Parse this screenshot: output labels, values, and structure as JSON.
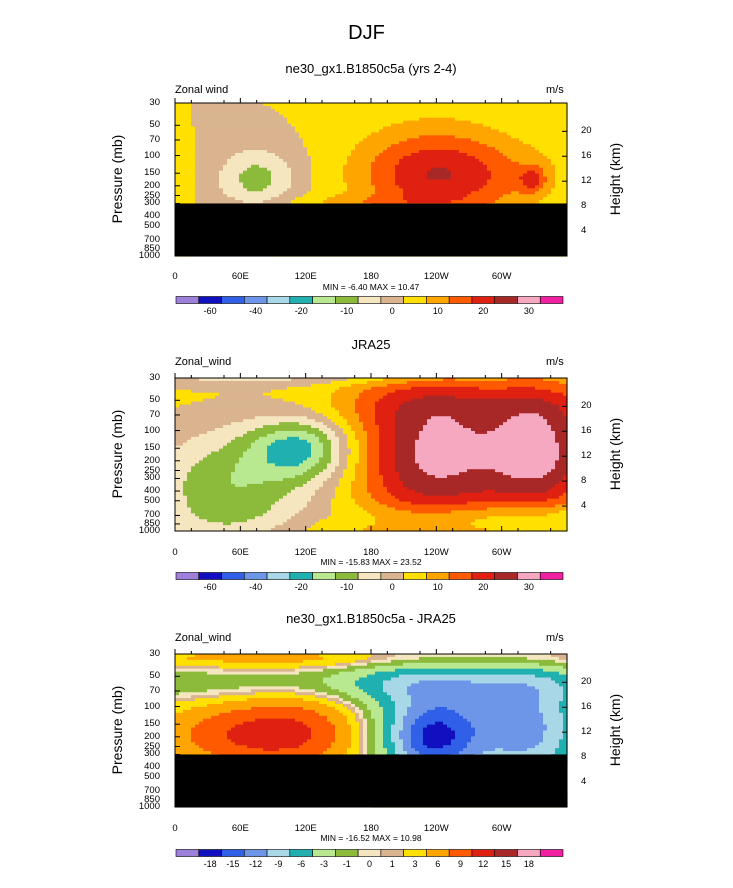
{
  "title": "DJF",
  "colors": {
    "abs": [
      "#9E7FDB",
      "#1010C0",
      "#3060E8",
      "#6E96E8",
      "#A8D8E8",
      "#20B0B0",
      "#B8E890",
      "#8CBB3C",
      "#F5E6C0",
      "#D9B48E",
      "#FFE000",
      "#FFA500",
      "#FF5A00",
      "#E02010",
      "#A82828",
      "#F5A8C0",
      "#F020A0"
    ],
    "diff": [
      "#9E7FDB",
      "#1010C0",
      "#3060E8",
      "#6E96E8",
      "#A8D8E8",
      "#20B0B0",
      "#B8E890",
      "#8CBB3C",
      "#F5E6C0",
      "#D9B48E",
      "#FFE000",
      "#FFA500",
      "#FF5A00",
      "#E02010",
      "#A82828",
      "#F5A8C0",
      "#F020A0"
    ],
    "mask": "#000000"
  },
  "chart_data": [
    {
      "type": "heatmap",
      "title": "ne30_gx1.B1850c5a (yrs 2-4)",
      "left_string": "Zonal wind",
      "right_string": "m/s",
      "ylabel": "Pressure (mb)",
      "ylabel_right": "Height (km)",
      "y_ticks": [
        "30",
        "50",
        "70",
        "100",
        "150",
        "200",
        "250",
        "300",
        "400",
        "500",
        "700",
        "850",
        "1000"
      ],
      "y_values": [
        30,
        50,
        70,
        100,
        150,
        200,
        250,
        300,
        400,
        500,
        700,
        850,
        1000
      ],
      "right_ticks": [
        "20",
        "16",
        "12",
        "8",
        "4"
      ],
      "right_values": [
        20,
        16,
        12,
        8,
        4
      ],
      "x_ticks": [
        "0",
        "60E",
        "120E",
        "180",
        "120W",
        "60W"
      ],
      "x_values": [
        0,
        60,
        120,
        180,
        240,
        300
      ],
      "xlim": [
        0,
        360
      ],
      "ylim": [
        1000,
        30
      ],
      "min_max": "MIN = -6.40  MAX = 10.47",
      "masked_below_mb": 300,
      "levels": [
        "-60",
        "-40",
        "-20",
        "-10",
        "0",
        "10",
        "20",
        "30"
      ],
      "level_values": [
        -60,
        -40,
        -20,
        -10,
        0,
        10,
        20,
        30
      ],
      "palette": "abs",
      "features": [
        {
          "lon": 75,
          "p": 170,
          "dx": 26,
          "dy": 0.5,
          "v": -12
        },
        {
          "lon": 5,
          "p": 165,
          "dx": 10,
          "dy": 0.45,
          "v": 3
        },
        {
          "lon": 240,
          "p": 150,
          "dx": 55,
          "dy": 0.95,
          "v": 8
        },
        {
          "lon": 238,
          "p": 155,
          "dx": 48,
          "dy": 0.65,
          "v": 12
        },
        {
          "lon": 320,
          "p": 160,
          "dx": 38,
          "dy": 0.55,
          "v": 4
        },
        {
          "lon": 328,
          "p": 175,
          "dx": 8,
          "dy": 0.2,
          "v": 12
        },
        {
          "lon": 160,
          "p": 290,
          "dx": 60,
          "dy": 0.12,
          "v": 4
        }
      ]
    },
    {
      "type": "heatmap",
      "title": "JRA25",
      "left_string": "Zonal_wind",
      "right_string": "m/s",
      "ylabel": "Pressure (mb)",
      "ylabel_right": "Height (km)",
      "y_ticks": [
        "30",
        "50",
        "70",
        "100",
        "150",
        "200",
        "250",
        "300",
        "400",
        "500",
        "700",
        "850",
        "1000"
      ],
      "y_values": [
        30,
        50,
        70,
        100,
        150,
        200,
        250,
        300,
        400,
        500,
        700,
        850,
        1000
      ],
      "right_ticks": [
        "20",
        "16",
        "12",
        "8",
        "4"
      ],
      "right_values": [
        20,
        16,
        12,
        8,
        4
      ],
      "x_ticks": [
        "0",
        "60E",
        "120E",
        "180",
        "120W",
        "60W"
      ],
      "x_values": [
        0,
        60,
        120,
        180,
        240,
        300
      ],
      "xlim": [
        0,
        360
      ],
      "ylim": [
        1000,
        30
      ],
      "min_max": "MIN = -15.83  MAX = 23.52",
      "masked_below_mb": null,
      "levels": [
        "-60",
        "-40",
        "-20",
        "-10",
        "0",
        "10",
        "20",
        "30"
      ],
      "level_values": [
        -60,
        -40,
        -20,
        -10,
        0,
        10,
        20,
        30
      ],
      "palette": "abs",
      "features": [
        {
          "lon": 270,
          "p": 55,
          "dx": 160,
          "dy": 0.35,
          "v": 4
        },
        {
          "lon": 120,
          "p": 160,
          "dx": 60,
          "dy": 0.8,
          "v": -8
        },
        {
          "lon": 60,
          "p": 350,
          "dx": 65,
          "dy": 0.75,
          "v": -7
        },
        {
          "lon": 40,
          "p": 500,
          "dx": 40,
          "dy": 0.9,
          "v": -6
        },
        {
          "lon": 115,
          "p": 150,
          "dx": 30,
          "dy": 0.45,
          "v": -16
        },
        {
          "lon": 235,
          "p": 170,
          "dx": 60,
          "dy": 1.3,
          "v": 28
        },
        {
          "lon": 340,
          "p": 160,
          "dx": 35,
          "dy": 1.1,
          "v": 22
        },
        {
          "lon": 320,
          "p": 750,
          "dx": 150,
          "dy": 0.25,
          "v": -8
        },
        {
          "lon": 140,
          "p": 850,
          "dx": 35,
          "dy": 0.25,
          "v": 4
        },
        {
          "lon": 90,
          "p": 30,
          "dx": 130,
          "dy": 0.12,
          "v": -6
        }
      ]
    },
    {
      "type": "heatmap",
      "title": "ne30_gx1.B1850c5a - JRA25",
      "left_string": "Zonal_wind",
      "right_string": "m/s",
      "ylabel": "Pressure (mb)",
      "ylabel_right": "Height (km)",
      "y_ticks": [
        "30",
        "50",
        "70",
        "100",
        "150",
        "200",
        "250",
        "300",
        "400",
        "500",
        "700",
        "850",
        "1000"
      ],
      "y_values": [
        30,
        50,
        70,
        100,
        150,
        200,
        250,
        300,
        400,
        500,
        700,
        850,
        1000
      ],
      "right_ticks": [
        "20",
        "16",
        "12",
        "8",
        "4"
      ],
      "right_values": [
        20,
        16,
        12,
        8,
        4
      ],
      "x_ticks": [
        "0",
        "60E",
        "120E",
        "180",
        "120W",
        "60W"
      ],
      "x_values": [
        0,
        60,
        120,
        180,
        240,
        300
      ],
      "xlim": [
        0,
        360
      ],
      "ylim": [
        1000,
        30
      ],
      "min_max": "MIN = -16.52  MAX = 10.98",
      "masked_below_mb": 300,
      "levels": [
        "-18",
        "-15",
        "-12",
        "-9",
        "-6",
        "-3",
        "-1",
        "0",
        "1",
        "3",
        "6",
        "9",
        "12",
        "15",
        "18"
      ],
      "level_values": [
        -18,
        -15,
        -12,
        -9,
        -6,
        -3,
        -1,
        0,
        1,
        3,
        6,
        9,
        12,
        15,
        18
      ],
      "palette": "diff",
      "features": [
        {
          "lon": 180,
          "p": 60,
          "dx": 260,
          "dy": 0.28,
          "v": -4
        },
        {
          "lon": 230,
          "p": 140,
          "dx": 60,
          "dy": 1.0,
          "v": -14
        },
        {
          "lon": 235,
          "p": 220,
          "dx": 28,
          "dy": 0.55,
          "v": -10
        },
        {
          "lon": 330,
          "p": 170,
          "dx": 35,
          "dy": 1.0,
          "v": -10
        },
        {
          "lon": 140,
          "p": 170,
          "dx": 70,
          "dy": 0.75,
          "v": 10
        },
        {
          "lon": 50,
          "p": 200,
          "dx": 60,
          "dy": 0.5,
          "v": 5
        },
        {
          "lon": 180,
          "p": 33,
          "dx": 250,
          "dy": 0.18,
          "v": 4
        }
      ]
    }
  ]
}
